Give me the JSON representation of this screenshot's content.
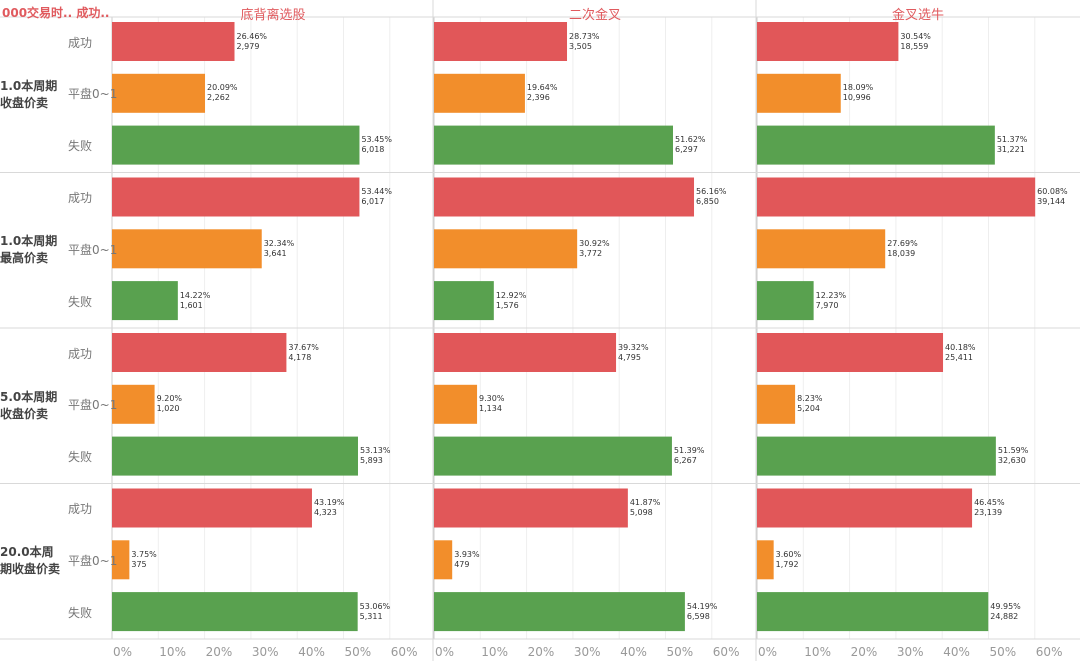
{
  "header": {
    "corner_label": "000交易时.. 成功.."
  },
  "chart_data": {
    "type": "bar",
    "orientation": "horizontal",
    "columns": [
      "底背离选股",
      "二次金叉",
      "金叉选牛"
    ],
    "groups": [
      "1.0本周期收盘价卖",
      "1.0本周期最高价卖",
      "5.0本周期收盘价卖",
      "20.0本周期收盘价卖"
    ],
    "categories": [
      "成功",
      "平盘0~1",
      "失败"
    ],
    "category_colors": {
      "成功": "#e15759",
      "平盘0~1": "#f28e2b",
      "失败": "#59a14f"
    },
    "x_ticks": [
      "0%",
      "10%",
      "20%",
      "30%",
      "40%",
      "50%",
      "60%"
    ],
    "xlim": [
      0,
      70
    ],
    "grid": true,
    "cells": [
      [
        [
          {
            "pct": 26.46,
            "pct_label": "26.46%",
            "count": "2,979"
          },
          {
            "pct": 20.09,
            "pct_label": "20.09%",
            "count": "2,262"
          },
          {
            "pct": 53.45,
            "pct_label": "53.45%",
            "count": "6,018"
          }
        ],
        [
          {
            "pct": 28.73,
            "pct_label": "28.73%",
            "count": "3,505"
          },
          {
            "pct": 19.64,
            "pct_label": "19.64%",
            "count": "2,396"
          },
          {
            "pct": 51.62,
            "pct_label": "51.62%",
            "count": "6,297"
          }
        ],
        [
          {
            "pct": 30.54,
            "pct_label": "30.54%",
            "count": "18,559"
          },
          {
            "pct": 18.09,
            "pct_label": "18.09%",
            "count": "10,996"
          },
          {
            "pct": 51.37,
            "pct_label": "51.37%",
            "count": "31,221"
          }
        ]
      ],
      [
        [
          {
            "pct": 53.44,
            "pct_label": "53.44%",
            "count": "6,017"
          },
          {
            "pct": 32.34,
            "pct_label": "32.34%",
            "count": "3,641"
          },
          {
            "pct": 14.22,
            "pct_label": "14.22%",
            "count": "1,601"
          }
        ],
        [
          {
            "pct": 56.16,
            "pct_label": "56.16%",
            "count": "6,850"
          },
          {
            "pct": 30.92,
            "pct_label": "30.92%",
            "count": "3,772"
          },
          {
            "pct": 12.92,
            "pct_label": "12.92%",
            "count": "1,576"
          }
        ],
        [
          {
            "pct": 60.08,
            "pct_label": "60.08%",
            "count": "39,144"
          },
          {
            "pct": 27.69,
            "pct_label": "27.69%",
            "count": "18,039"
          },
          {
            "pct": 12.23,
            "pct_label": "12.23%",
            "count": "7,970"
          }
        ]
      ],
      [
        [
          {
            "pct": 37.67,
            "pct_label": "37.67%",
            "count": "4,178"
          },
          {
            "pct": 9.2,
            "pct_label": "9.20%",
            "count": "1,020"
          },
          {
            "pct": 53.13,
            "pct_label": "53.13%",
            "count": "5,893"
          }
        ],
        [
          {
            "pct": 39.32,
            "pct_label": "39.32%",
            "count": "4,795"
          },
          {
            "pct": 9.3,
            "pct_label": "9.30%",
            "count": "1,134"
          },
          {
            "pct": 51.39,
            "pct_label": "51.39%",
            "count": "6,267"
          }
        ],
        [
          {
            "pct": 40.18,
            "pct_label": "40.18%",
            "count": "25,411"
          },
          {
            "pct": 8.23,
            "pct_label": "8.23%",
            "count": "5,204"
          },
          {
            "pct": 51.59,
            "pct_label": "51.59%",
            "count": "32,630"
          }
        ]
      ],
      [
        [
          {
            "pct": 43.19,
            "pct_label": "43.19%",
            "count": "4,323"
          },
          {
            "pct": 3.75,
            "pct_label": "3.75%",
            "count": "375"
          },
          {
            "pct": 53.06,
            "pct_label": "53.06%",
            "count": "5,311"
          }
        ],
        [
          {
            "pct": 41.87,
            "pct_label": "41.87%",
            "count": "5,098"
          },
          {
            "pct": 3.93,
            "pct_label": "3.93%",
            "count": "479"
          },
          {
            "pct": 54.19,
            "pct_label": "54.19%",
            "count": "6,598"
          }
        ],
        [
          {
            "pct": 46.45,
            "pct_label": "46.45%",
            "count": "23,139"
          },
          {
            "pct": 3.6,
            "pct_label": "3.60%",
            "count": "1,792"
          },
          {
            "pct": 49.95,
            "pct_label": "49.95%",
            "count": "24,882"
          }
        ]
      ]
    ]
  }
}
